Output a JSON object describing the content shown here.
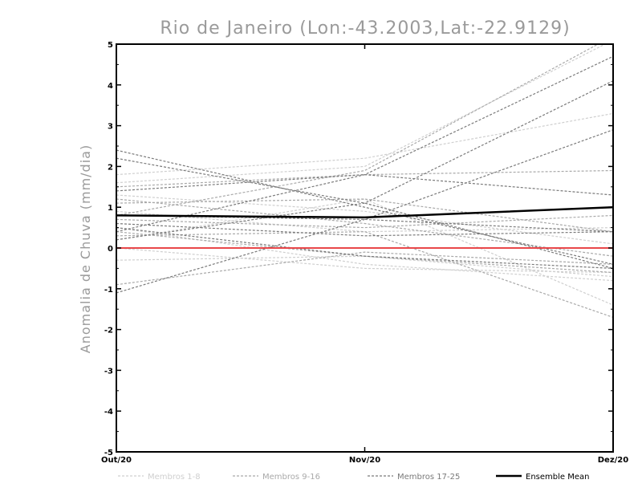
{
  "chart_data": {
    "type": "line",
    "title": "Rio de Janeiro (Lon:-43.2003,Lat:-22.9129)",
    "xlabel": "",
    "ylabel": "Anomalia de Chuva (mm/dia)",
    "categories": [
      "Out/20",
      "Nov/20",
      "Dez/20"
    ],
    "ylim": [
      -5,
      5
    ],
    "yticks": [
      "5",
      "4",
      "3",
      "2",
      "1",
      "0",
      "-1",
      "-2",
      "-3",
      "-4",
      "-5"
    ],
    "zero_line_color": "#e8474a",
    "groups": [
      {
        "name": "Membros 1-8",
        "color": "#cfcfcf"
      },
      {
        "name": "Membros 9-16",
        "color": "#a9a9a9"
      },
      {
        "name": "Membros 17-25",
        "color": "#7a7a7a"
      },
      {
        "name": "Ensemble Mean",
        "color": "#000000"
      }
    ],
    "series": [
      {
        "group": 0,
        "values": [
          1.6,
          2.0,
          5.1
        ]
      },
      {
        "group": 0,
        "values": [
          1.8,
          2.2,
          3.3
        ]
      },
      {
        "group": 0,
        "values": [
          1.3,
          0.9,
          0.1
        ]
      },
      {
        "group": 0,
        "values": [
          0.2,
          1.2,
          -1.4
        ]
      },
      {
        "group": 0,
        "values": [
          0.5,
          -0.4,
          -0.8
        ]
      },
      {
        "group": 0,
        "values": [
          0.0,
          -0.5,
          -0.6
        ]
      },
      {
        "group": 0,
        "values": [
          -0.3,
          -0.2,
          -0.7
        ]
      },
      {
        "group": 0,
        "values": [
          0.9,
          0.4,
          0.5
        ]
      },
      {
        "group": 1,
        "values": [
          0.8,
          1.9,
          5.2
        ]
      },
      {
        "group": 1,
        "values": [
          1.5,
          1.8,
          1.9
        ]
      },
      {
        "group": 1,
        "values": [
          0.3,
          0.4,
          -1.7
        ]
      },
      {
        "group": 1,
        "values": [
          0.7,
          0.5,
          0.8
        ]
      },
      {
        "group": 1,
        "values": [
          -0.9,
          -0.1,
          -0.4
        ]
      },
      {
        "group": 1,
        "values": [
          1.1,
          1.2,
          0.4
        ]
      },
      {
        "group": 1,
        "values": [
          0.4,
          -0.2,
          -0.6
        ]
      },
      {
        "group": 1,
        "values": [
          1.2,
          0.6,
          -0.2
        ]
      },
      {
        "group": 2,
        "values": [
          0.4,
          1.8,
          4.7
        ]
      },
      {
        "group": 2,
        "values": [
          0.2,
          1.1,
          4.1
        ]
      },
      {
        "group": 2,
        "values": [
          -1.1,
          0.7,
          2.9
        ]
      },
      {
        "group": 2,
        "values": [
          2.4,
          1.0,
          -0.4
        ]
      },
      {
        "group": 2,
        "values": [
          1.4,
          1.8,
          1.3
        ]
      },
      {
        "group": 2,
        "values": [
          0.6,
          0.3,
          0.4
        ]
      },
      {
        "group": 2,
        "values": [
          2.2,
          1.1,
          -0.5
        ]
      },
      {
        "group": 2,
        "values": [
          0.8,
          0.7,
          0.4
        ]
      },
      {
        "group": 2,
        "values": [
          0.5,
          -0.2,
          -0.5
        ]
      }
    ],
    "mean": {
      "values": [
        0.8,
        0.75,
        1.0
      ]
    },
    "legend_position": "bottom",
    "grid": false
  }
}
